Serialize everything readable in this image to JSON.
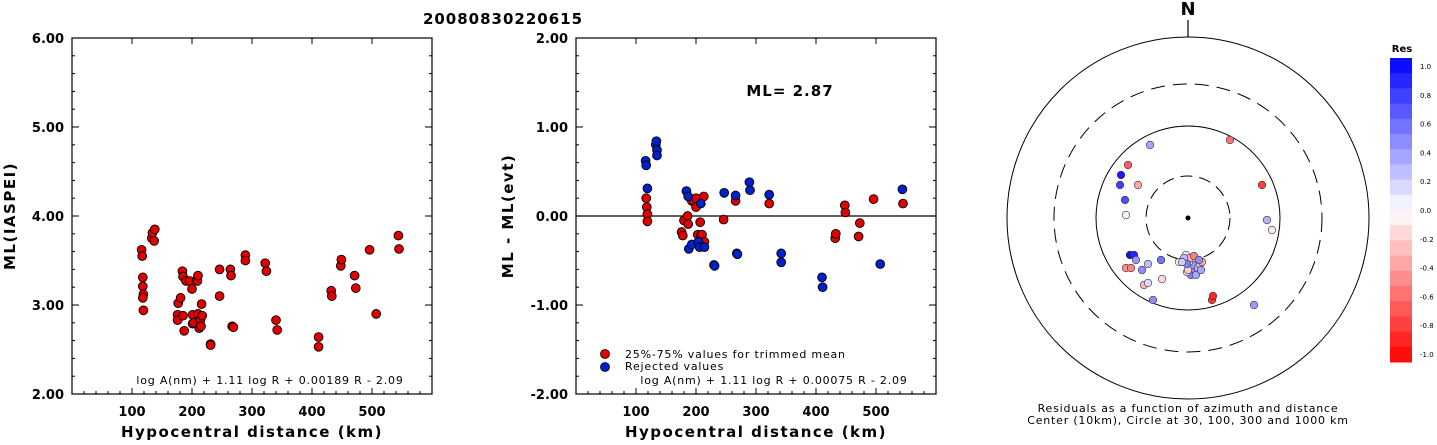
{
  "page_title": "20080830220615",
  "colors": {
    "kept": "#e00000",
    "rejected": "#0020cc",
    "edge": "#000000"
  },
  "chart_data": [
    {
      "type": "scatter",
      "xlabel": "Hypocentral distance (km)",
      "ylabel": "ML(IASPEI)",
      "xlim": [
        0,
        600
      ],
      "ylim": [
        2.0,
        6.0
      ],
      "xticks": [
        "100",
        "200",
        "300",
        "400",
        "500"
      ],
      "yticks": [
        "2.00",
        "3.00",
        "4.00",
        "5.00",
        "6.00"
      ],
      "formula": "log A(nm) + 1.11 log R + 0.00189 R - 2.09",
      "points": [
        [
          116,
          3.62
        ],
        [
          117,
          3.55
        ],
        [
          118,
          3.31
        ],
        [
          118,
          3.21
        ],
        [
          119,
          3.12
        ],
        [
          118,
          3.08
        ],
        [
          119,
          2.94
        ],
        [
          133,
          3.75
        ],
        [
          134,
          3.81
        ],
        [
          137,
          3.72
        ],
        [
          138,
          3.85
        ],
        [
          176,
          2.89
        ],
        [
          177,
          3.02
        ],
        [
          176,
          2.83
        ],
        [
          181,
          3.08
        ],
        [
          184,
          3.38
        ],
        [
          185,
          3.32
        ],
        [
          185,
          2.88
        ],
        [
          187,
          2.71
        ],
        [
          190,
          3.27
        ],
        [
          196,
          3.27
        ],
        [
          200,
          3.18
        ],
        [
          201,
          2.79
        ],
        [
          201,
          2.89
        ],
        [
          203,
          2.8
        ],
        [
          208,
          3.28
        ],
        [
          209,
          3.27
        ],
        [
          210,
          3.33
        ],
        [
          210,
          2.9
        ],
        [
          212,
          2.74
        ],
        [
          214,
          2.83
        ],
        [
          216,
          3.01
        ],
        [
          217,
          2.88
        ],
        [
          215,
          2.76
        ],
        [
          231,
          2.56
        ],
        [
          231,
          2.55
        ],
        [
          246,
          3.4
        ],
        [
          246,
          3.1
        ],
        [
          264,
          3.4
        ],
        [
          265,
          3.33
        ],
        [
          267,
          2.76
        ],
        [
          269,
          2.75
        ],
        [
          289,
          3.56
        ],
        [
          289,
          3.5
        ],
        [
          322,
          3.47
        ],
        [
          324,
          3.38
        ],
        [
          340,
          2.83
        ],
        [
          342,
          2.72
        ],
        [
          411,
          2.64
        ],
        [
          411,
          2.53
        ],
        [
          432,
          3.16
        ],
        [
          433,
          3.1
        ],
        [
          448,
          3.44
        ],
        [
          449,
          3.51
        ],
        [
          471,
          3.33
        ],
        [
          473,
          3.19
        ],
        [
          496,
          3.62
        ],
        [
          507,
          2.9
        ],
        [
          544,
          3.78
        ],
        [
          545,
          3.63
        ]
      ]
    },
    {
      "type": "scatter",
      "xlabel": "Hypocentral distance (km)",
      "ylabel": "ML - ML(evt)",
      "xlim": [
        0,
        600
      ],
      "ylim": [
        -2.0,
        2.0
      ],
      "xticks": [
        "100",
        "200",
        "300",
        "400",
        "500"
      ],
      "yticks": [
        "-2.00",
        "-1.00",
        "0.00",
        "1.00",
        "2.00"
      ],
      "annotation": "ML= 2.87",
      "formula": "log A(nm) + 1.11 log R + 0.00075 R - 2.09",
      "legend": [
        "25%-75% values for trimmed mean",
        "Rejected values"
      ],
      "kept": [
        [
          117,
          0.2
        ],
        [
          118,
          0.1
        ],
        [
          119,
          0.02
        ],
        [
          119,
          -0.06
        ],
        [
          176,
          -0.18
        ],
        [
          178,
          -0.22
        ],
        [
          180,
          -0.05
        ],
        [
          186,
          0.0
        ],
        [
          187,
          -0.09
        ],
        [
          193,
          0.17
        ],
        [
          196,
          0.17
        ],
        [
          200,
          0.2
        ],
        [
          200,
          0.1
        ],
        [
          203,
          -0.21
        ],
        [
          207,
          -0.07
        ],
        [
          208,
          -0.22
        ],
        [
          210,
          -0.21
        ],
        [
          213,
          0.22
        ],
        [
          214,
          -0.29
        ],
        [
          246,
          -0.04
        ],
        [
          266,
          0.17
        ],
        [
          322,
          0.14
        ],
        [
          432,
          -0.25
        ],
        [
          433,
          -0.2
        ],
        [
          448,
          0.12
        ],
        [
          449,
          0.04
        ],
        [
          471,
          -0.23
        ],
        [
          473,
          -0.08
        ],
        [
          496,
          0.19
        ],
        [
          545,
          0.14
        ]
      ],
      "rejected": [
        [
          116,
          0.62
        ],
        [
          117,
          0.57
        ],
        [
          119,
          0.31
        ],
        [
          133,
          0.8
        ],
        [
          134,
          0.84
        ],
        [
          135,
          0.74
        ],
        [
          135,
          0.68
        ],
        [
          184,
          0.28
        ],
        [
          187,
          0.22
        ],
        [
          188,
          -0.37
        ],
        [
          193,
          -0.32
        ],
        [
          204,
          -0.29
        ],
        [
          206,
          -0.35
        ],
        [
          208,
          0.14
        ],
        [
          214,
          -0.35
        ],
        [
          230,
          -0.55
        ],
        [
          231,
          -0.56
        ],
        [
          247,
          0.26
        ],
        [
          266,
          0.23
        ],
        [
          268,
          -0.42
        ],
        [
          269,
          -0.43
        ],
        [
          289,
          0.38
        ],
        [
          290,
          0.29
        ],
        [
          322,
          0.24
        ],
        [
          342,
          -0.42
        ],
        [
          342,
          -0.52
        ],
        [
          410,
          -0.69
        ],
        [
          411,
          -0.8
        ],
        [
          507,
          -0.54
        ],
        [
          544,
          0.3
        ]
      ]
    },
    {
      "type": "scatter",
      "polar": true,
      "north_label": "N",
      "caption_line1": "Residuals as a function of azimuth and distance",
      "caption_line2": "Center (10km), Circle at 30, 100, 300 and 1000 km",
      "colorbar_title": "Res",
      "colorbar_ticks": [
        "1.0",
        "0.8",
        "0.6",
        "0.4",
        "0.2",
        "0.0",
        "-0.2",
        "-0.4",
        "-0.6",
        "-0.8",
        "-1.0"
      ],
      "stations": [
        [
          3,
          275,
          0.5
        ],
        [
          7,
          270,
          0.45
        ],
        [
          5,
          265,
          0.4
        ],
        [
          8,
          275,
          0.35
        ],
        [
          10,
          268,
          0.3
        ],
        [
          12,
          262,
          0.2
        ],
        [
          -1,
          272,
          0.15
        ],
        [
          1,
          262,
          0.1
        ],
        [
          -2,
          255,
          0.05
        ],
        [
          0,
          270,
          -0.2
        ],
        [
          2,
          258,
          -0.3
        ],
        [
          -4,
          258,
          0.25
        ],
        [
          -6,
          262,
          0.4
        ],
        [
          -9,
          262,
          -0.05
        ],
        [
          12,
          264,
          -0.25
        ],
        [
          14,
          262,
          -0.35
        ],
        [
          6,
          256,
          -0.5
        ],
        [
          11,
          260,
          0.45
        ],
        [
          24,
          300,
          -0.8
        ],
        [
          25,
          296,
          -0.85
        ],
        [
          -38,
          145,
          0.35
        ],
        [
          42,
          140,
          -0.55
        ],
        [
          -50,
          185,
          -0.35
        ],
        [
          -60,
          165,
          -0.65
        ],
        [
          79,
          220,
          0.3
        ],
        [
          84,
          230,
          -0.1
        ],
        [
          -67,
          175,
          0.9
        ],
        [
          -68,
          185,
          0.75
        ],
        [
          -63,
          200,
          0.7
        ],
        [
          74,
          185,
          -0.75
        ],
        [
          -62,
          215,
          0.05
        ],
        [
          -46,
          270,
          0.45
        ],
        [
          -58,
          255,
          0.95
        ],
        [
          -54,
          255,
          0.85
        ],
        [
          -52,
          260,
          0.4
        ],
        [
          -62,
          268,
          -0.45
        ],
        [
          -57,
          268,
          -0.5
        ],
        [
          66,
          305,
          0.4
        ],
        [
          -44,
          285,
          -0.3
        ],
        [
          -40,
          283,
          0.15
        ],
        [
          -40,
          264,
          0.25
        ],
        [
          -27,
          260,
          0.55
        ],
        [
          -26,
          279,
          -0.15
        ],
        [
          -1,
          264,
          0.5
        ],
        [
          -6,
          262,
          0.2
        ],
        [
          -35,
          300,
          0.45
        ],
        [
          13,
          270,
          0.35
        ]
      ]
    }
  ]
}
